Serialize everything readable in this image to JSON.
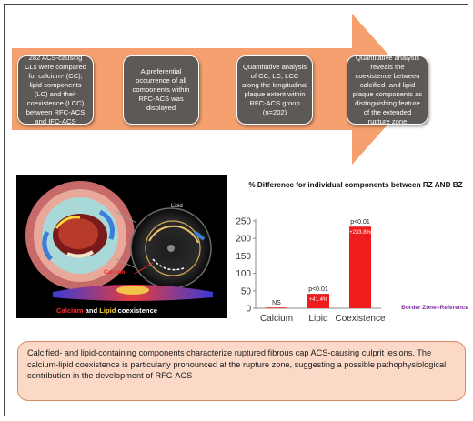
{
  "steps": [
    "282 ACS-causing CLs were compared for calcium- (CC), lipid components (LC) and their coexistence (LCC) between RFC-ACS and IFC-ACS",
    "A preferential occurrence of all components within RFC-ACS was displayed",
    "Quantitative analysis of CC, LC, LCC along the longitudinal plaque extent within RFC-ACS group (n=202)",
    "Quantitative analysis reveals the coexistence between calcified- and lipid plaque components as distinguishing feature of the extended rupture zone"
  ],
  "image": {
    "lipid_label": "Lipid",
    "calcium_label": "Calcium",
    "caption": {
      "part1": "Calcium",
      "part2": " and ",
      "part3": "Lipid",
      "part4": " coexistence"
    }
  },
  "chart_data": {
    "type": "bar",
    "title": "% Difference for individual components between RZ AND BZ",
    "categories": [
      "Calcium",
      "Lipid",
      "Coexistence"
    ],
    "values": [
      2,
      41.4,
      233.8
    ],
    "data_labels": [
      "",
      "+41.4%",
      "+233.8%"
    ],
    "p_values": [
      "NS",
      "p<0.01",
      "p<0.01"
    ],
    "yticks": [
      0,
      50,
      100,
      150,
      200,
      250
    ],
    "ylim": [
      0,
      250
    ],
    "annotation": "Border Zone=Reference",
    "colors": {
      "bar": "#ee1c1c",
      "axis": "#8a8a8a",
      "annotation": "#7a2ea0"
    }
  },
  "conclusion": "Calcified- and lipid-containing components characterize ruptured fibrous cap ACS-causing culprit lesions. The calcium-lipid coexistence is particularly pronounced at the rupture zone, suggesting a possible pathophysiological contribution in the development of RFC-ACS",
  "colors": {
    "arrow": "#f5a06e",
    "step_box": "#5d5957",
    "conclusion_bg": "#fcd9c7",
    "conclusion_border": "#d88866"
  }
}
